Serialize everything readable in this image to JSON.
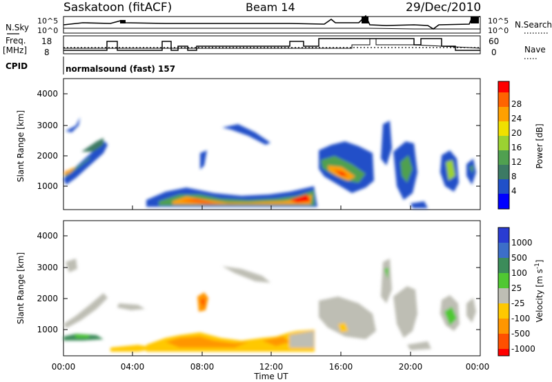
{
  "header": {
    "station": "Saskatoon (fitACF)",
    "beam": "Beam 14",
    "date": "29/Dec/2010"
  },
  "strips": {
    "nsky_label": "N.Sky",
    "nsky_ticks": [
      "10^5",
      "10^0"
    ],
    "nsearch_label": "N.Search",
    "nsearch_ticks": [
      "10^5",
      "10^0"
    ],
    "freq_label": [
      "Freq.",
      "[MHz]"
    ],
    "freq_ticks": [
      "18",
      "8"
    ],
    "nave_label": "Nave",
    "nave_ticks": [
      "60",
      "0"
    ],
    "cpid_label": "CPID",
    "cpid_text": "normalsound (fast) 157"
  },
  "axes": {
    "ylabel": "Slant Range [km]",
    "yticks": [
      "1000",
      "2000",
      "3000",
      "4000"
    ],
    "xticks": [
      "00:00",
      "04:00",
      "08:00",
      "12:00",
      "16:00",
      "20:00",
      "00:00"
    ],
    "xlabel": "Time UT"
  },
  "colorbars": {
    "power": {
      "label": "Power [dB]",
      "ticks": [
        "4",
        "8",
        "12",
        "16",
        "20",
        "24",
        "28"
      ],
      "colors": [
        "#0000ff",
        "#2050c8",
        "#3c7a64",
        "#50a050",
        "#9bd232",
        "#f0e000",
        "#ffa000",
        "#ff6400",
        "#ff0000"
      ]
    },
    "velocity": {
      "label": "Velocity [m s",
      "label_sup": "-1",
      "label_end": "]",
      "ticks": [
        "1000",
        "500",
        "100",
        "25",
        "-25",
        "-100",
        "-500",
        "-1000"
      ],
      "colors": [
        "#2a3cd2",
        "#3c6ec8",
        "#3c8c5a",
        "#50c832",
        "#bebeb4",
        "#ffc800",
        "#ff9600",
        "#ff5000",
        "#ff0000"
      ]
    }
  },
  "chart_data": [
    {
      "type": "heatmap",
      "title": "Power",
      "xlabel": "Time UT",
      "ylabel": "Slant Range [km]",
      "xlim": [
        "00:00",
        "24:00"
      ],
      "ylim": [
        180,
        4500
      ],
      "colorbar": "Power [dB]",
      "features": [
        {
          "time": [
            "00:00",
            "01:00"
          ],
          "range_km": [
            1200,
            2000
          ],
          "peak_power_db": 24
        },
        {
          "time": [
            "01:00",
            "02:30"
          ],
          "range_km": [
            1800,
            2500
          ],
          "peak_power_db": 16
        },
        {
          "time": [
            "05:00",
            "14:30"
          ],
          "range_km": [
            300,
            900
          ],
          "peak_power_db": 28
        },
        {
          "time": [
            "09:30",
            "11:30"
          ],
          "range_km": [
            2400,
            3000
          ],
          "peak_power_db": 8
        },
        {
          "time": [
            "14:30",
            "17:30"
          ],
          "range_km": [
            1000,
            2300
          ],
          "peak_power_db": 24
        },
        {
          "time": [
            "19:00",
            "21:00"
          ],
          "range_km": [
            400,
            2800
          ],
          "peak_power_db": 12
        },
        {
          "time": [
            "21:30",
            "24:00"
          ],
          "range_km": [
            800,
            1900
          ],
          "peak_power_db": 16
        }
      ]
    },
    {
      "type": "heatmap",
      "title": "Velocity",
      "xlabel": "Time UT",
      "ylabel": "Slant Range [km]",
      "xlim": [
        "00:00",
        "24:00"
      ],
      "ylim": [
        180,
        4500
      ],
      "colorbar": "Velocity [m s-1]",
      "features": [
        {
          "time": [
            "00:00",
            "02:30"
          ],
          "range_km": [
            1500,
            2600
          ],
          "velocity_ms": 0
        },
        {
          "time": [
            "00:00",
            "02:00"
          ],
          "range_km": [
            600,
            800
          ],
          "velocity_ms": 100
        },
        {
          "time": [
            "07:30",
            "08:30"
          ],
          "range_km": [
            1700,
            2200
          ],
          "velocity_ms": -500
        },
        {
          "time": [
            "06:00",
            "15:00"
          ],
          "range_km": [
            200,
            900
          ],
          "velocity_ms": -100
        },
        {
          "time": [
            "14:30",
            "18:00"
          ],
          "range_km": [
            600,
            2300
          ],
          "velocity_ms": 0
        },
        {
          "time": [
            "21:30",
            "24:00"
          ],
          "range_km": [
            800,
            1900
          ],
          "velocity_ms": 100
        }
      ]
    }
  ]
}
